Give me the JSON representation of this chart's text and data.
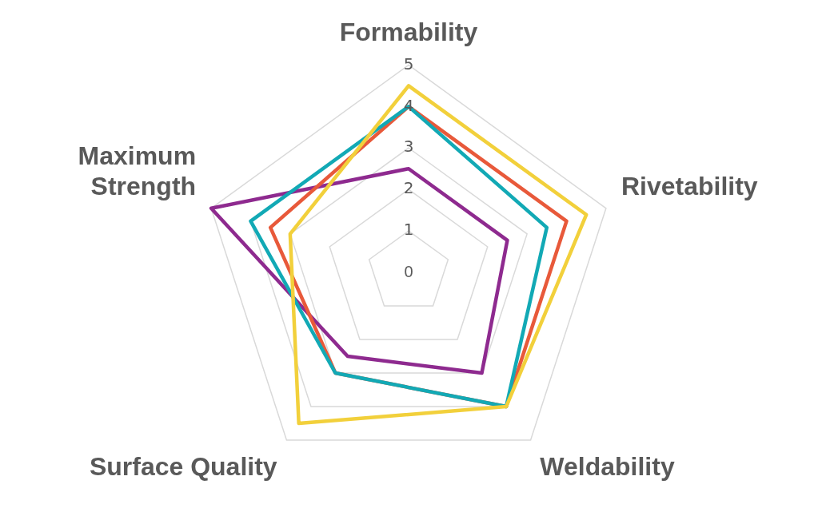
{
  "chart_data": {
    "type": "radar",
    "categories": [
      "Formability",
      "Rivetability",
      "Weldability",
      "Surface Quality",
      "Maximum Strength"
    ],
    "series": [
      {
        "color": "#f2d03b",
        "values": [
          4.5,
          4.5,
          4,
          4.5,
          3
        ]
      },
      {
        "color": "#12a9b5",
        "values": [
          4,
          3.5,
          4,
          3,
          4
        ]
      },
      {
        "color": "#e8593a",
        "values": [
          4,
          4,
          4,
          3,
          3.5
        ]
      },
      {
        "color": "#8e2a8f",
        "values": [
          2.5,
          2.5,
          3,
          2.5,
          5
        ]
      }
    ],
    "ylim": [
      0,
      5
    ],
    "yticks": [
      0,
      1,
      2,
      3,
      4,
      5
    ],
    "grid": true,
    "legend": false,
    "marker": "none"
  }
}
